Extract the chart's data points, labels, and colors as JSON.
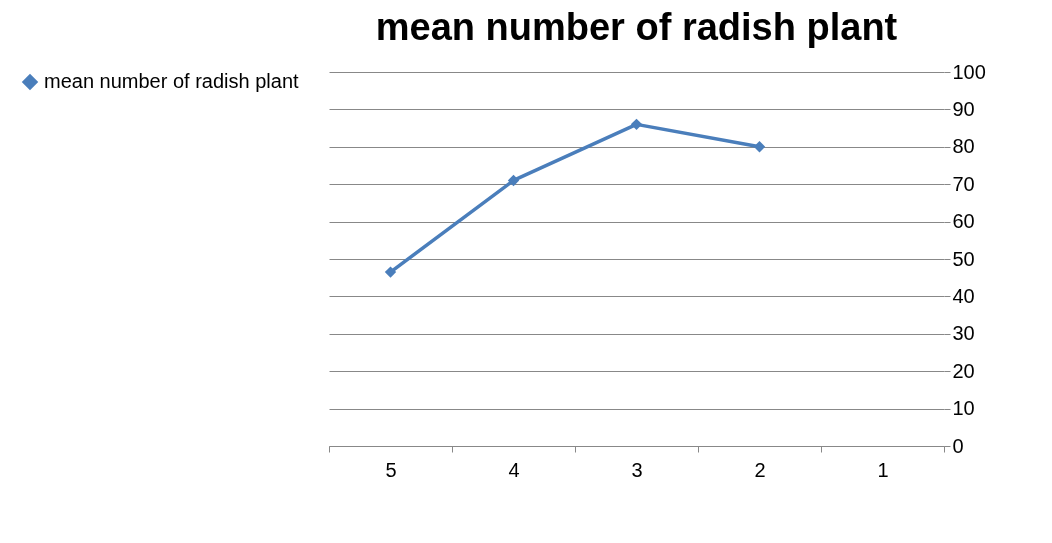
{
  "chart_data": {
    "type": "line",
    "title": "mean number of radish plant",
    "categories": [
      "5",
      "4",
      "3",
      "2",
      "1"
    ],
    "series": [
      {
        "name": "mean number of radish plant",
        "color": "#4a7ebb",
        "values": [
          46.5,
          71,
          86,
          80,
          null
        ]
      }
    ],
    "ylim": [
      0,
      100
    ],
    "yticks": [
      0,
      10,
      20,
      30,
      40,
      50,
      60,
      70,
      80,
      90,
      100
    ],
    "grid": "y",
    "legend": "left",
    "marker": "diamond",
    "line_style": "solid"
  }
}
